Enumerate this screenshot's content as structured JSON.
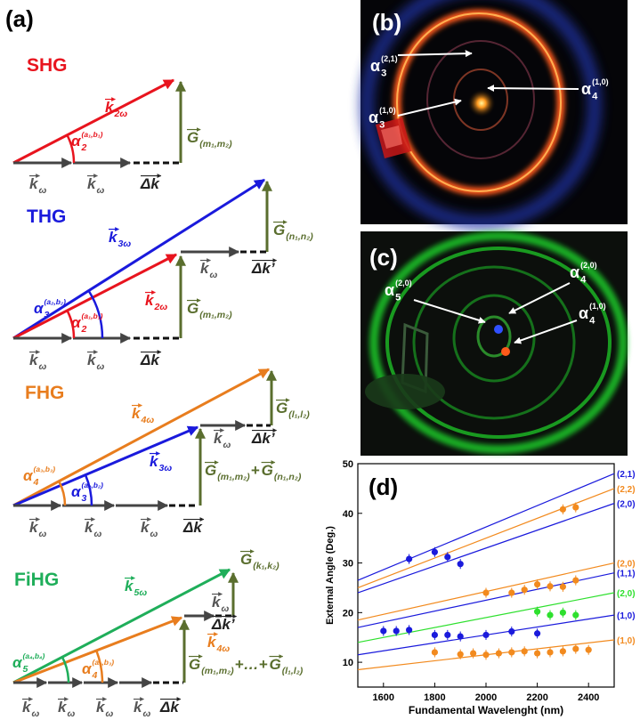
{
  "figure_a": {
    "label": "(a)",
    "diagrams": [
      {
        "title": "SHG",
        "color": "#e8141e",
        "labels": [
          {
            "color": "#e8141e",
            "parts": [
              {
                "text": "k",
                "sub": "2ω",
                "vector": true
              }
            ]
          },
          {
            "color": "#e8141e",
            "parts": [
              {
                "text": "α",
                "sub": "2",
                "sup": "(a₁,b₁)"
              }
            ]
          },
          {
            "color": "#5a6e2e",
            "parts": [
              {
                "text": "G",
                "sub": "(m₁,m₂)",
                "vector": true
              }
            ]
          },
          {
            "color": "#555555",
            "parts": [
              {
                "text": "k",
                "sub": "ω",
                "vector": true
              }
            ]
          },
          {
            "color": "#555555",
            "parts": [
              {
                "text": "k",
                "sub": "ω",
                "vector": true
              }
            ]
          },
          {
            "color": "#222222",
            "parts": [
              {
                "text": "Δk",
                "vector": true
              }
            ]
          }
        ]
      },
      {
        "title": "THG",
        "color": "#1a1adc",
        "labels": [
          {
            "color": "#1a1adc",
            "parts": [
              {
                "text": "k",
                "sub": "3ω",
                "vector": true
              }
            ]
          },
          {
            "color": "#1a1adc",
            "parts": [
              {
                "text": "α",
                "sub": "3",
                "sup": "(a₂,b₂)"
              }
            ]
          },
          {
            "color": "#e8141e",
            "parts": [
              {
                "text": "α",
                "sub": "2",
                "sup": "(a₁,b₁)"
              }
            ]
          },
          {
            "color": "#e8141e",
            "parts": [
              {
                "text": "k",
                "sub": "2ω",
                "vector": true
              }
            ]
          },
          {
            "color": "#5a6e2e",
            "parts": [
              {
                "text": "G",
                "sub": "(m₁,m₂)",
                "vector": true
              }
            ]
          },
          {
            "color": "#5a6e2e",
            "parts": [
              {
                "text": "G",
                "sub": "(n₁,n₂)",
                "vector": true
              }
            ]
          },
          {
            "color": "#555555",
            "parts": [
              {
                "text": "k",
                "sub": "ω",
                "vector": true
              }
            ]
          },
          {
            "color": "#222222",
            "parts": [
              {
                "text": "Δk’",
                "vector": true
              }
            ]
          },
          {
            "color": "#555555",
            "parts": [
              {
                "text": "k",
                "sub": "ω",
                "vector": true
              }
            ]
          },
          {
            "color": "#555555",
            "parts": [
              {
                "text": "k",
                "sub": "ω",
                "vector": true
              }
            ]
          },
          {
            "color": "#222222",
            "parts": [
              {
                "text": "Δk",
                "vector": true
              }
            ]
          }
        ]
      },
      {
        "title": "FHG",
        "color": "#e87d1e",
        "labels": [
          {
            "color": "#e87d1e",
            "parts": [
              {
                "text": "k",
                "sub": "4ω",
                "vector": true
              }
            ]
          },
          {
            "color": "#1a1adc",
            "parts": [
              {
                "text": "k",
                "sub": "3ω",
                "vector": true
              }
            ]
          },
          {
            "color": "#e87d1e",
            "parts": [
              {
                "text": "α",
                "sub": "4",
                "sup": "(a₃,b₃)"
              }
            ]
          },
          {
            "color": "#1a1adc",
            "parts": [
              {
                "text": "α",
                "sub": "3",
                "sup": "(a₂,b₂)"
              }
            ]
          },
          {
            "color": "#5a6e2e",
            "parts": [
              {
                "text": "G",
                "sub": "(m₁,m₂)",
                "vector": true
              },
              {
                "text": "+"
              },
              {
                "text": "G",
                "sub": "(n₁,n₂)",
                "vector": true
              }
            ]
          },
          {
            "color": "#5a6e2e",
            "parts": [
              {
                "text": "G",
                "sub": "(l₁,l₂)",
                "vector": true
              }
            ]
          },
          {
            "color": "#555555",
            "parts": [
              {
                "text": "k",
                "sub": "ω",
                "vector": true
              }
            ]
          },
          {
            "color": "#222222",
            "parts": [
              {
                "text": "Δk’",
                "vector": true
              }
            ]
          },
          {
            "color": "#555555",
            "parts": [
              {
                "text": "k",
                "sub": "ω",
                "vector": true
              }
            ]
          },
          {
            "color": "#555555",
            "parts": [
              {
                "text": "k",
                "sub": "ω",
                "vector": true
              }
            ]
          },
          {
            "color": "#555555",
            "parts": [
              {
                "text": "k",
                "sub": "ω",
                "vector": true
              }
            ]
          },
          {
            "color": "#222222",
            "parts": [
              {
                "text": "Δk",
                "vector": true
              }
            ]
          }
        ]
      },
      {
        "title": "FiHG",
        "color": "#1fae5a",
        "labels": [
          {
            "color": "#1fae5a",
            "parts": [
              {
                "text": "k",
                "sub": "5ω",
                "vector": true
              }
            ]
          },
          {
            "color": "#e87d1e",
            "parts": [
              {
                "text": "k",
                "sub": "4ω",
                "vector": true
              }
            ]
          },
          {
            "color": "#1fae5a",
            "parts": [
              {
                "text": "α",
                "sub": "5",
                "sup": "(a₄,b₄)"
              }
            ]
          },
          {
            "color": "#e87d1e",
            "parts": [
              {
                "text": "α",
                "sub": "4",
                "sup": "(a₃,b₃)"
              }
            ]
          },
          {
            "color": "#5a6e2e",
            "parts": [
              {
                "text": "G",
                "sub": "(m₁,m₂)",
                "vector": true
              },
              {
                "text": "+…+"
              },
              {
                "text": "G",
                "sub": "(l₁,l₂)",
                "vector": true
              }
            ]
          },
          {
            "color": "#5a6e2e",
            "parts": [
              {
                "text": "G",
                "sub": "(k₁,k₂)",
                "vector": true
              }
            ]
          },
          {
            "color": "#555555",
            "parts": [
              {
                "text": "k",
                "sub": "ω",
                "vector": true
              }
            ]
          },
          {
            "color": "#222222",
            "parts": [
              {
                "text": "Δk’",
                "vector": true
              }
            ]
          },
          {
            "color": "#555555",
            "parts": [
              {
                "text": "k",
                "sub": "ω",
                "vector": true
              }
            ]
          },
          {
            "color": "#555555",
            "parts": [
              {
                "text": "k",
                "sub": "ω",
                "vector": true
              }
            ]
          },
          {
            "color": "#555555",
            "parts": [
              {
                "text": "k",
                "sub": "ω",
                "vector": true
              }
            ]
          },
          {
            "color": "#555555",
            "parts": [
              {
                "text": "k",
                "sub": "ω",
                "vector": true
              }
            ]
          },
          {
            "color": "#222222",
            "parts": [
              {
                "text": "Δk",
                "vector": true
              }
            ]
          }
        ]
      }
    ]
  },
  "photo_b": {
    "label": "(b)",
    "labels": [
      {
        "parts": [
          {
            "text": "α",
            "sub": "3",
            "sup": "(2,1)"
          }
        ]
      },
      {
        "parts": [
          {
            "text": "α",
            "sub": "3",
            "sup": "(1,0)"
          }
        ]
      },
      {
        "parts": [
          {
            "text": "α",
            "sub": "4",
            "sup": "(1,0)"
          }
        ]
      }
    ]
  },
  "photo_c": {
    "label": "(c)",
    "labels": [
      {
        "parts": [
          {
            "text": "α",
            "sub": "5",
            "sup": "(2,0)"
          }
        ]
      },
      {
        "parts": [
          {
            "text": "α",
            "sub": "4",
            "sup": "(2,0)"
          }
        ]
      },
      {
        "parts": [
          {
            "text": "α",
            "sub": "4",
            "sup": "(1,0)"
          }
        ]
      }
    ]
  },
  "chart_data": {
    "type": "scatter",
    "label": "(d)",
    "xlabel": "Fundamental Wavelenght (nm)",
    "ylabel": "External Angle (Deg.)",
    "xlim": [
      1500,
      2500
    ],
    "ylim": [
      5,
      50
    ],
    "xticks": [
      1600,
      1800,
      2000,
      2200,
      2400
    ],
    "yticks": [
      10,
      20,
      30,
      40,
      50
    ],
    "series": [
      {
        "color": "#1a1adc",
        "x": [
          1700,
          1800,
          1850,
          1900
        ],
        "values": [
          30.8,
          32.2,
          31.2,
          29.8
        ],
        "errors": [
          1,
          1,
          1,
          1
        ]
      },
      {
        "color": "#f28a1e",
        "x": [
          2300,
          2350
        ],
        "values": [
          40.8,
          41.2
        ],
        "errors": [
          1,
          1
        ]
      },
      {
        "color": "#f28a1e",
        "x": [
          2000,
          2100,
          2150,
          2200,
          2250,
          2300,
          2350
        ],
        "values": [
          24,
          24,
          24.6,
          25.7,
          25.3,
          25.2,
          26.5
        ],
        "errors": [
          1,
          1,
          1,
          1,
          1,
          1,
          1
        ]
      },
      {
        "color": "#2ee02e",
        "x": [
          2200,
          2250,
          2300,
          2350
        ],
        "values": [
          20.2,
          19.5,
          20,
          19.5
        ],
        "errors": [
          1,
          1,
          1,
          1
        ]
      },
      {
        "color": "#1a1adc",
        "x": [
          1600,
          1650,
          1700,
          1800,
          1850,
          1900,
          2000,
          2100,
          2200
        ],
        "values": [
          16.3,
          16.3,
          16.5,
          15.5,
          15.5,
          15.2,
          15.5,
          16.2,
          15.8
        ],
        "errors": [
          1,
          1,
          1,
          1,
          1,
          1,
          1,
          1,
          1
        ]
      },
      {
        "color": "#f28a1e",
        "x": [
          1800,
          1900,
          1950,
          2000,
          2050,
          2100,
          2150,
          2200,
          2250,
          2300,
          2350,
          2400
        ],
        "values": [
          12,
          11.6,
          11.8,
          11.5,
          11.8,
          12,
          12.2,
          11.8,
          12,
          12.2,
          12.7,
          12.5
        ],
        "errors": [
          1,
          1,
          1,
          1,
          1,
          1,
          1,
          1,
          1,
          1,
          1,
          1
        ]
      }
    ],
    "fits": [
      {
        "name": "(2,1)",
        "color": "#1a1adc",
        "x": [
          1500,
          2500
        ],
        "values": [
          26.5,
          48
        ]
      },
      {
        "name": "(2,2)",
        "color": "#f28a1e",
        "x": [
          1500,
          2500
        ],
        "values": [
          25,
          45
        ]
      },
      {
        "name": "(2,0)",
        "color": "#1a1adc",
        "x": [
          1500,
          2500
        ],
        "values": [
          24,
          42
        ]
      },
      {
        "name": "(2,0)",
        "color": "#f28a1e",
        "x": [
          1500,
          2500
        ],
        "values": [
          18.5,
          30
        ]
      },
      {
        "name": "(1,1)",
        "color": "#1a1adc",
        "x": [
          1500,
          2500
        ],
        "values": [
          17,
          28
        ]
      },
      {
        "name": "(2,0)",
        "color": "#2ee02e",
        "x": [
          1500,
          2500
        ],
        "values": [
          14,
          24
        ]
      },
      {
        "name": "(1,0)",
        "color": "#1a1adc",
        "x": [
          1500,
          2500
        ],
        "values": [
          11.5,
          19.5
        ]
      },
      {
        "name": "(1,0)",
        "color": "#f28a1e",
        "x": [
          1500,
          2500
        ],
        "values": [
          8.5,
          14.5
        ]
      }
    ]
  }
}
